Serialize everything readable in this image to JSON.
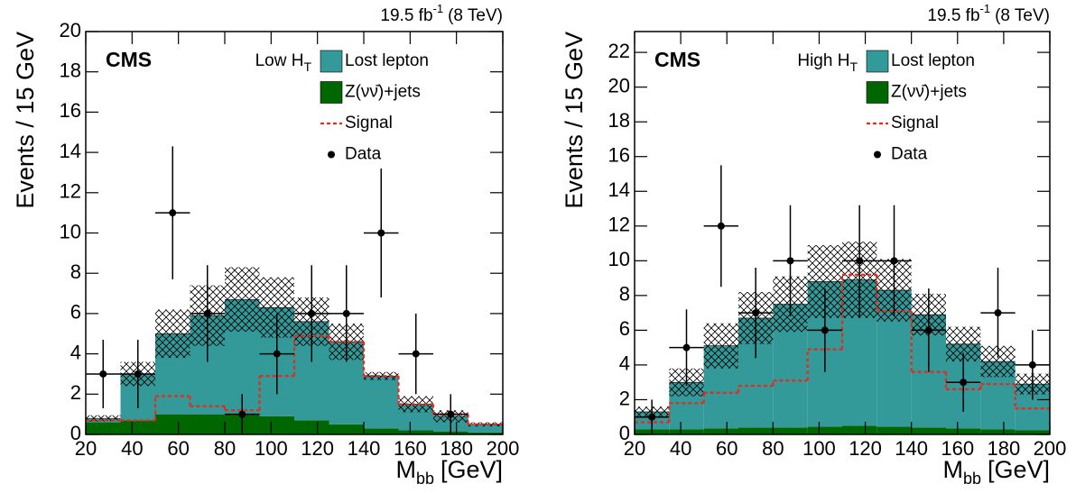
{
  "chart_data": [
    {
      "type": "histogram",
      "lumi": {
        "text": "19.5 fb",
        "sup": "-1",
        "tail": "(8 TeV)"
      },
      "experiment": "CMS",
      "region": {
        "text": "Low H",
        "sub": "T"
      },
      "ylabel": "Events / 15 GeV",
      "xlabel": {
        "text": "M",
        "sub": "bb",
        "tail": "[GeV]"
      },
      "bins": [
        20,
        35,
        50,
        65,
        80,
        95,
        110,
        125,
        140,
        155,
        170,
        185,
        200
      ],
      "xlim": [
        20,
        200
      ],
      "xticks": [
        20,
        40,
        60,
        80,
        100,
        120,
        140,
        160,
        180,
        200
      ],
      "ylim": [
        0,
        20
      ],
      "yticks": [
        0,
        2,
        4,
        6,
        8,
        10,
        12,
        14,
        16,
        18,
        20
      ],
      "series": [
        {
          "name": "Lost lepton",
          "color": "#339999",
          "stack": true,
          "values": [
            0.2,
            2.3,
            4.0,
            4.9,
            5.7,
            5.4,
            4.9,
            4.1,
            2.6,
            1.3,
            0.75,
            0.4
          ]
        },
        {
          "name": "Z(νν̄)+jets",
          "color": "#006600",
          "stack": true,
          "values": [
            0.6,
            0.7,
            1.0,
            1.0,
            1.0,
            0.9,
            0.7,
            0.5,
            0.3,
            0.2,
            0.15,
            0.1
          ]
        },
        {
          "name": "Signal",
          "color": "#e8291c",
          "style": "dashed",
          "values": [
            0.7,
            0.7,
            1.9,
            1.4,
            1.2,
            2.9,
            4.9,
            4.6,
            2.9,
            1.5,
            1.0,
            0.5
          ]
        },
        {
          "name": "Data",
          "color": "#000000",
          "style": "points",
          "values": [
            3,
            3,
            11,
            6,
            1,
            4,
            6,
            6,
            10,
            4,
            1,
            null
          ],
          "errors": [
            1.7,
            1.7,
            3.3,
            2.4,
            1.0,
            2.0,
            2.4,
            2.4,
            3.2,
            2.0,
            1.0,
            null
          ]
        }
      ],
      "uncertainty": [
        0.15,
        0.6,
        1.2,
        1.5,
        1.6,
        1.5,
        1.2,
        0.9,
        0.2,
        0.4,
        0.3,
        0.1
      ]
    },
    {
      "type": "histogram",
      "lumi": {
        "text": "19.5 fb",
        "sup": "-1",
        "tail": "(8 TeV)"
      },
      "experiment": "CMS",
      "region": {
        "text": "High H",
        "sub": "T"
      },
      "ylabel": "Events / 15 GeV",
      "xlabel": {
        "text": "M",
        "sub": "bb",
        "tail": "[GeV]"
      },
      "bins": [
        20,
        35,
        50,
        65,
        80,
        95,
        110,
        125,
        140,
        155,
        170,
        185,
        200
      ],
      "xlim": [
        20,
        200
      ],
      "xticks": [
        20,
        40,
        60,
        80,
        100,
        120,
        140,
        160,
        180,
        200
      ],
      "ylim": [
        0,
        23.2
      ],
      "yticks": [
        0,
        2,
        4,
        6,
        8,
        10,
        12,
        14,
        16,
        18,
        20,
        22
      ],
      "series": [
        {
          "name": "Lost lepton",
          "color": "#339999",
          "stack": true,
          "values": [
            1.0,
            2.7,
            4.75,
            6.3,
            7.1,
            8.35,
            8.4,
            7.85,
            6.5,
            4.85,
            3.9,
            2.65
          ]
        },
        {
          "name": "Z(νν̄)+jets",
          "color": "#006600",
          "stack": true,
          "values": [
            0.3,
            0.3,
            0.35,
            0.4,
            0.4,
            0.45,
            0.5,
            0.45,
            0.4,
            0.35,
            0.3,
            0.25
          ]
        },
        {
          "name": "Signal",
          "color": "#e8291c",
          "style": "dashed",
          "values": [
            0.7,
            1.8,
            2.4,
            2.8,
            3.1,
            4.9,
            9.2,
            7.1,
            3.6,
            2.6,
            2.9,
            1.5
          ]
        },
        {
          "name": "Data",
          "color": "#000000",
          "style": "points",
          "values": [
            1,
            5,
            12,
            7,
            10,
            6,
            10,
            10,
            6,
            3,
            7,
            4
          ],
          "errors": [
            1.0,
            2.2,
            3.5,
            2.6,
            3.2,
            2.4,
            3.2,
            3.2,
            2.4,
            1.7,
            2.6,
            2.0
          ]
        }
      ],
      "uncertainty": [
        0.3,
        0.8,
        1.3,
        1.5,
        1.6,
        2.1,
        2.2,
        1.8,
        1.2,
        1.0,
        0.9,
        0.6
      ]
    }
  ]
}
